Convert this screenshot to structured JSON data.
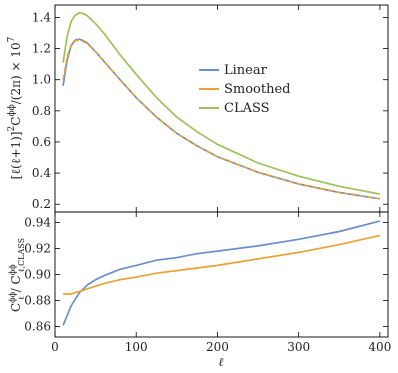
{
  "chart_data": [
    {
      "type": "line",
      "title": "",
      "xlabel": "ℓ",
      "ylabel": "[ℓ(ℓ+1)]² C_ℓ^{ϕϕ}/(2π) × 10⁷",
      "ylabel_parts": {
        "a": "[ℓ(ℓ+1)]",
        "a_sup": "2",
        "b": "C",
        "b_sup": "ϕϕ",
        "b_sub": "ℓ",
        "c": "/(2π) × 10",
        "c_sup": "7"
      },
      "xlim": [
        0,
        410
      ],
      "ylim": [
        0.15,
        1.48
      ],
      "x_ticks": [
        0,
        100,
        200,
        300,
        400
      ],
      "y_ticks": [
        0.2,
        0.4,
        0.6,
        0.8,
        1.0,
        1.2,
        1.4
      ],
      "y_tick_labels": [
        "0.2",
        "0.4",
        "0.6",
        "0.8",
        "1.0",
        "1.2",
        "1.4"
      ],
      "legend_position": "right",
      "series": [
        {
          "name": "Linear",
          "color": "#6b8fca",
          "x": [
            10,
            15,
            20,
            25,
            30,
            35,
            40,
            50,
            60,
            70,
            80,
            100,
            125,
            150,
            175,
            200,
            250,
            300,
            350,
            400
          ],
          "y": [
            0.96,
            1.13,
            1.22,
            1.255,
            1.26,
            1.25,
            1.235,
            1.18,
            1.12,
            1.06,
            1.0,
            0.885,
            0.76,
            0.655,
            0.575,
            0.505,
            0.405,
            0.33,
            0.275,
            0.235
          ]
        },
        {
          "name": "Smoothed",
          "color": "#e8a236",
          "x": [
            10,
            15,
            20,
            25,
            30,
            35,
            40,
            50,
            60,
            70,
            80,
            100,
            125,
            150,
            175,
            200,
            250,
            300,
            350,
            400
          ],
          "y": [
            1.0,
            1.15,
            1.225,
            1.25,
            1.255,
            1.245,
            1.23,
            1.18,
            1.12,
            1.06,
            1.0,
            0.885,
            0.76,
            0.655,
            0.575,
            0.505,
            0.405,
            0.33,
            0.275,
            0.235
          ]
        },
        {
          "name": "CLASS",
          "color": "#9cc15b",
          "x": [
            10,
            15,
            20,
            25,
            30,
            35,
            40,
            50,
            60,
            70,
            80,
            100,
            125,
            150,
            175,
            200,
            250,
            300,
            350,
            400
          ],
          "y": [
            1.11,
            1.28,
            1.375,
            1.415,
            1.43,
            1.425,
            1.41,
            1.36,
            1.3,
            1.23,
            1.16,
            1.035,
            0.885,
            0.76,
            0.665,
            0.585,
            0.465,
            0.38,
            0.315,
            0.265
          ]
        }
      ]
    },
    {
      "type": "line",
      "title": "",
      "xlabel": "ℓ",
      "ylabel": "C_ℓ^{ϕϕ} / C_{ℓ,CLASS}^{ϕϕ}",
      "ylabel_parts": {
        "num": "C",
        "num_sup": "ϕϕ",
        "num_sub": "ℓ",
        "den": "C",
        "den_sup": "ϕϕ",
        "den_sub": "ℓ,CLASS"
      },
      "xlim": [
        0,
        410
      ],
      "ylim": [
        0.852,
        0.948
      ],
      "x_ticks": [
        0,
        100,
        200,
        300,
        400
      ],
      "x_tick_labels": [
        "0",
        "100",
        "200",
        "300",
        "400"
      ],
      "y_ticks": [
        0.86,
        0.88,
        0.9,
        0.92,
        0.94
      ],
      "y_tick_labels": [
        "0.86",
        "0.88",
        "0.90",
        "0.92",
        "0.94"
      ],
      "series": [
        {
          "name": "Linear",
          "color": "#6b8fca",
          "x": [
            10,
            20,
            30,
            40,
            50,
            60,
            80,
            100,
            125,
            150,
            175,
            200,
            250,
            300,
            350,
            400
          ],
          "y": [
            0.861,
            0.876,
            0.886,
            0.892,
            0.896,
            0.899,
            0.904,
            0.907,
            0.911,
            0.913,
            0.916,
            0.918,
            0.922,
            0.927,
            0.933,
            0.941
          ]
        },
        {
          "name": "Smoothed",
          "color": "#e8a236",
          "x": [
            10,
            20,
            30,
            40,
            50,
            60,
            80,
            100,
            125,
            150,
            175,
            200,
            250,
            300,
            350,
            400
          ],
          "y": [
            0.885,
            0.885,
            0.887,
            0.889,
            0.891,
            0.893,
            0.896,
            0.898,
            0.901,
            0.903,
            0.905,
            0.907,
            0.912,
            0.917,
            0.923,
            0.93
          ]
        }
      ]
    }
  ]
}
